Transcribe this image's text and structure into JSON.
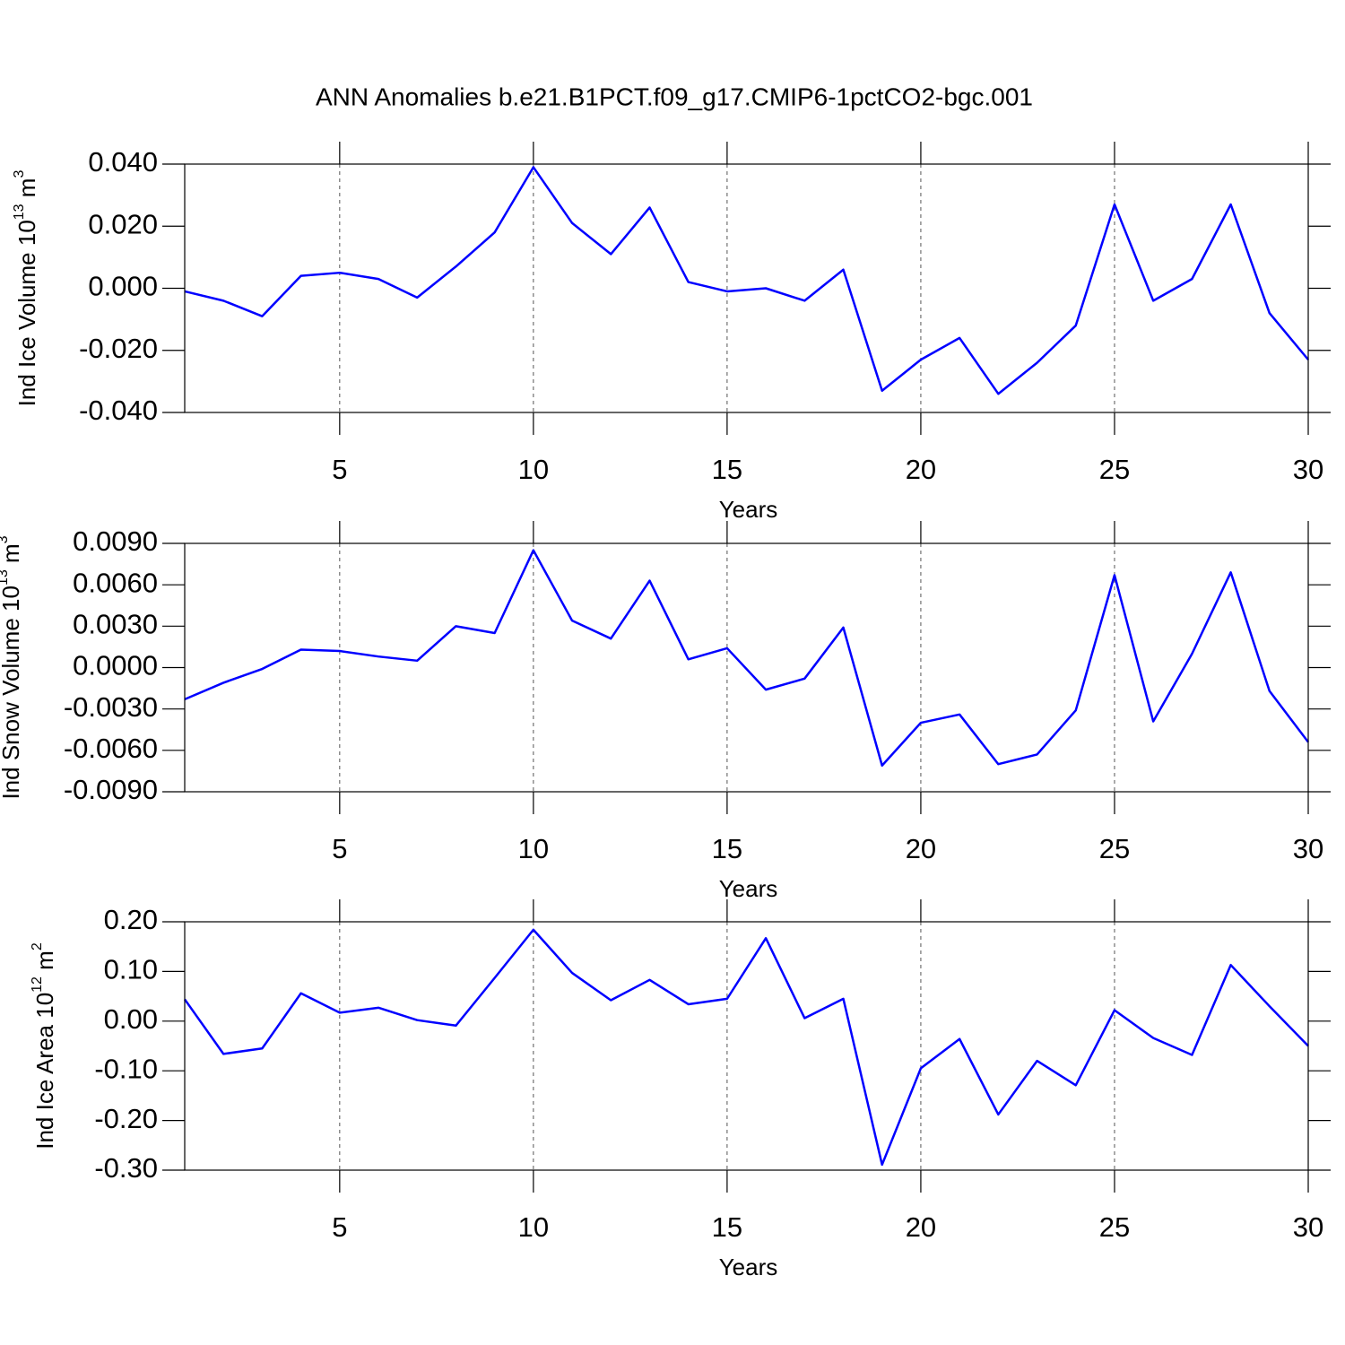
{
  "title": "ANN Anomalies b.e21.B1PCT.f09_g17.CMIP6-1pctCO2-bgc.001",
  "chart_data": [
    {
      "type": "line",
      "xlabel": "Years",
      "ylabel": [
        {
          "text": "Ind Ice Volume 10"
        },
        {
          "sup": "13"
        },
        {
          "text": " m"
        },
        {
          "sup": "3"
        }
      ],
      "x": [
        1,
        2,
        3,
        4,
        5,
        6,
        7,
        8,
        9,
        10,
        11,
        12,
        13,
        14,
        15,
        16,
        17,
        18,
        19,
        20,
        21,
        22,
        23,
        24,
        25,
        26,
        27,
        28,
        29,
        30
      ],
      "series": [
        {
          "color": "#0000ff",
          "values": [
            -0.001,
            -0.004,
            -0.009,
            0.004,
            0.005,
            0.003,
            -0.003,
            0.007,
            0.018,
            0.039,
            0.021,
            0.011,
            0.026,
            0.002,
            -0.001,
            0.0,
            -0.004,
            0.006,
            -0.033,
            -0.023,
            -0.016,
            -0.034,
            -0.024,
            -0.012,
            0.027,
            -0.004,
            0.003,
            0.027,
            -0.008,
            -0.023
          ]
        }
      ],
      "xlim": [
        1,
        30
      ],
      "xticks": [
        5,
        10,
        15,
        20,
        25,
        30
      ],
      "ylim": [
        -0.04,
        0.04
      ],
      "yticks": [
        {
          "value": -0.04,
          "label": "-0.040"
        },
        {
          "value": -0.02,
          "label": "-0.020"
        },
        {
          "value": 0,
          "label": "0.000"
        },
        {
          "value": 0.02,
          "label": "0.020"
        },
        {
          "value": 0.04,
          "label": "0.040"
        }
      ],
      "grid": "x"
    },
    {
      "type": "line",
      "xlabel": "Years",
      "ylabel": [
        {
          "text": "Ind Snow Volume 10"
        },
        {
          "sup": "13"
        },
        {
          "text": " m"
        },
        {
          "sup": "3"
        }
      ],
      "x": [
        1,
        2,
        3,
        4,
        5,
        6,
        7,
        8,
        9,
        10,
        11,
        12,
        13,
        14,
        15,
        16,
        17,
        18,
        19,
        20,
        21,
        22,
        23,
        24,
        25,
        26,
        27,
        28,
        29,
        30
      ],
      "series": [
        {
          "color": "#0000ff",
          "values": [
            -0.0023,
            -0.0011,
            -0.0001,
            0.0013,
            0.0012,
            0.0008,
            0.0005,
            0.003,
            0.0025,
            0.0085,
            0.0034,
            0.0021,
            0.0063,
            0.0006,
            0.0014,
            -0.0016,
            -0.0008,
            0.0029,
            -0.0071,
            -0.004,
            -0.0034,
            -0.007,
            -0.0063,
            -0.0031,
            0.0067,
            -0.0039,
            0.001,
            0.0069,
            -0.0017,
            -0.0054
          ]
        }
      ],
      "xlim": [
        1,
        30
      ],
      "xticks": [
        5,
        10,
        15,
        20,
        25,
        30
      ],
      "ylim": [
        -0.009,
        0.009
      ],
      "yticks": [
        {
          "value": -0.009,
          "label": "-0.0090"
        },
        {
          "value": -0.006,
          "label": "-0.0060"
        },
        {
          "value": -0.003,
          "label": "-0.0030"
        },
        {
          "value": 0,
          "label": "0.0000"
        },
        {
          "value": 0.003,
          "label": "0.0030"
        },
        {
          "value": 0.006,
          "label": "0.0060"
        },
        {
          "value": 0.009,
          "label": "0.0090"
        }
      ],
      "grid": "x"
    },
    {
      "type": "line",
      "xlabel": "Years",
      "ylabel": [
        {
          "text": "Ind Ice Area 10"
        },
        {
          "sup": "12"
        },
        {
          "text": " m"
        },
        {
          "sup": "2"
        }
      ],
      "x": [
        1,
        2,
        3,
        4,
        5,
        6,
        7,
        8,
        9,
        10,
        11,
        12,
        13,
        14,
        15,
        16,
        17,
        18,
        19,
        20,
        21,
        22,
        23,
        24,
        25,
        26,
        27,
        28,
        29,
        30
      ],
      "series": [
        {
          "color": "#0000ff",
          "values": [
            0.044,
            -0.066,
            -0.055,
            0.056,
            0.017,
            0.027,
            0.002,
            -0.009,
            0.087,
            0.184,
            0.097,
            0.042,
            0.083,
            0.034,
            0.045,
            0.167,
            0.006,
            0.045,
            -0.289,
            -0.095,
            -0.036,
            -0.188,
            -0.08,
            -0.129,
            0.022,
            -0.034,
            -0.068,
            0.113,
            0.03,
            -0.05
          ]
        }
      ],
      "xlim": [
        1,
        30
      ],
      "xticks": [
        5,
        10,
        15,
        20,
        25,
        30
      ],
      "ylim": [
        -0.3,
        0.2
      ],
      "yticks": [
        {
          "value": -0.3,
          "label": "-0.30"
        },
        {
          "value": -0.2,
          "label": "-0.20"
        },
        {
          "value": -0.1,
          "label": "-0.10"
        },
        {
          "value": 0,
          "label": "0.00"
        },
        {
          "value": 0.1,
          "label": "0.10"
        },
        {
          "value": 0.2,
          "label": "0.20"
        }
      ],
      "grid": "x"
    }
  ]
}
